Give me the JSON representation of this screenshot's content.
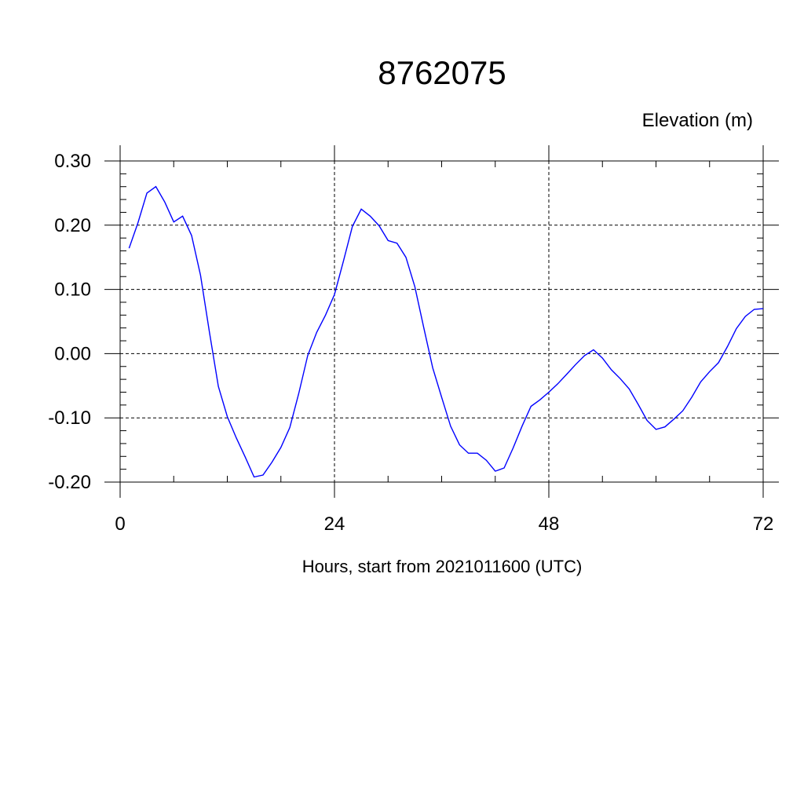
{
  "chart_data": {
    "type": "line",
    "title": "8762075",
    "ylabel": "Elevation (m)",
    "xlabel": "Hours, start from 2021011600 (UTC)",
    "xlim": [
      0,
      72
    ],
    "ylim": [
      -0.2,
      0.3
    ],
    "x_ticks": [
      0,
      24,
      48,
      72
    ],
    "x_tick_labels": [
      "0",
      "24",
      "48",
      "72"
    ],
    "y_ticks": [
      -0.2,
      -0.1,
      0.0,
      0.1,
      0.2,
      0.3
    ],
    "y_tick_labels": [
      "-0.20",
      "-0.10",
      "0.00",
      "0.10",
      "0.20",
      "0.30"
    ],
    "grid": true,
    "line_color": "#0000ff",
    "series": [
      {
        "x": [
          1,
          2,
          3,
          4,
          5,
          6,
          7,
          8,
          9,
          10,
          11,
          12,
          13,
          14,
          15,
          16,
          17,
          18,
          19,
          20,
          21,
          22,
          23,
          24,
          25,
          26,
          27,
          28,
          29,
          30,
          31,
          32,
          33,
          34,
          35,
          36,
          37,
          38,
          39,
          40,
          41,
          42,
          43,
          44,
          45,
          46,
          47,
          48,
          49,
          50,
          51,
          52,
          53,
          54,
          55,
          56,
          57,
          58,
          59,
          60,
          61,
          62,
          63,
          64,
          65,
          66,
          67,
          68,
          69,
          70,
          71,
          72
        ],
        "y": [
          0.164,
          0.204,
          0.25,
          0.26,
          0.236,
          0.205,
          0.214,
          0.184,
          0.122,
          0.033,
          -0.051,
          -0.098,
          -0.131,
          -0.161,
          -0.192,
          -0.189,
          -0.169,
          -0.146,
          -0.115,
          -0.062,
          -0.003,
          0.033,
          0.06,
          0.092,
          0.144,
          0.198,
          0.225,
          0.214,
          0.199,
          0.176,
          0.172,
          0.15,
          0.104,
          0.04,
          -0.022,
          -0.068,
          -0.113,
          -0.142,
          -0.155,
          -0.155,
          -0.166,
          -0.183,
          -0.178,
          -0.147,
          -0.113,
          -0.082,
          -0.072,
          -0.06,
          -0.047,
          -0.032,
          -0.017,
          -0.003,
          0.006,
          -0.007,
          -0.025,
          -0.039,
          -0.055,
          -0.079,
          -0.104,
          -0.118,
          -0.114,
          -0.102,
          -0.089,
          -0.068,
          -0.044,
          -0.028,
          -0.014,
          0.011,
          0.039,
          0.058,
          0.069,
          0.07
        ]
      }
    ]
  }
}
